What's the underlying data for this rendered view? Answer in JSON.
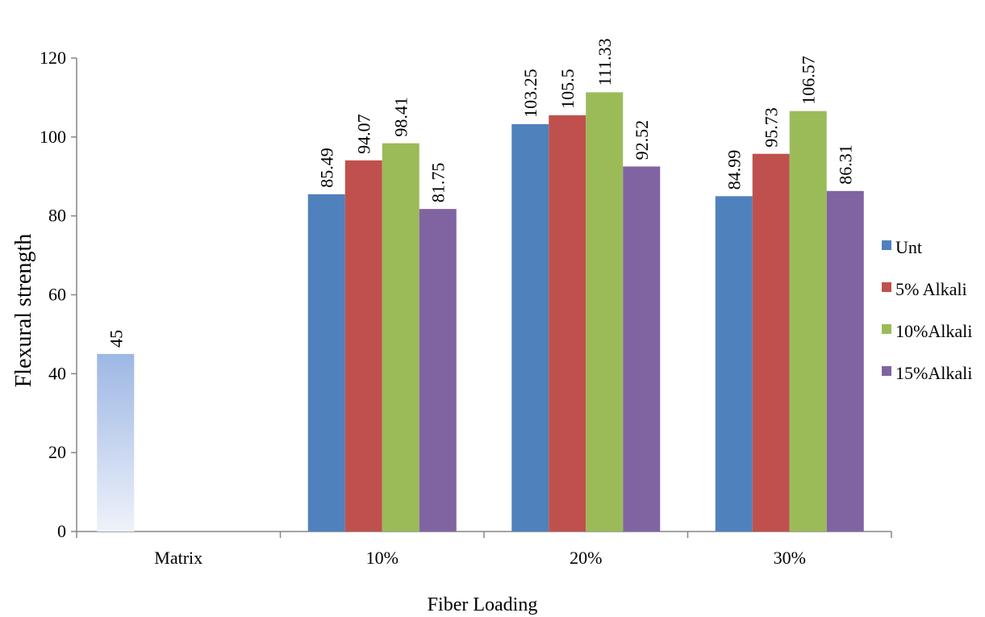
{
  "chart_data": {
    "type": "bar",
    "title": "",
    "xlabel": "Fiber Loading",
    "ylabel": "Flexural  strength",
    "ylim": [
      0,
      120
    ],
    "yticks": [
      0,
      20,
      40,
      60,
      80,
      100,
      120
    ],
    "grid": false,
    "legend_position": "right",
    "categories": [
      "Matrix",
      "10%",
      "20%",
      "30%"
    ],
    "matrix_bar": {
      "category": "Matrix",
      "value": 45,
      "label": "45",
      "color_top": "#9db7e4",
      "color_bottom": "#eef2fa"
    },
    "series": [
      {
        "name": "Unt",
        "color": "#4f81bd",
        "values": [
          null,
          85.49,
          103.25,
          84.99
        ],
        "labels": [
          "",
          "85.49",
          "103.25",
          "84.99"
        ]
      },
      {
        "name": "5% Alkali",
        "color": "#c0504d",
        "values": [
          null,
          94.07,
          105.5,
          95.73
        ],
        "labels": [
          "",
          "94.07",
          "105.5",
          "95.73"
        ]
      },
      {
        "name": "10%Alkali",
        "color": "#9bbb59",
        "values": [
          null,
          98.41,
          111.33,
          106.57
        ],
        "labels": [
          "",
          "98.41",
          "111.33",
          "106.57"
        ]
      },
      {
        "name": "15%Alkali",
        "color": "#8064a2",
        "values": [
          null,
          81.75,
          92.52,
          86.31
        ],
        "labels": [
          "",
          "81.75",
          "92.52",
          "86.31"
        ]
      }
    ]
  }
}
